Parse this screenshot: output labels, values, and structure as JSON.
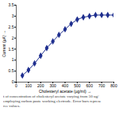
{
  "chart_data": {
    "type": "line",
    "x_label": "Cholesteryl acetate (µg/ml)",
    "y_label": "Current (µA)",
    "caption": [
      "t of concentration of cholesteryl acetate varying from 50 ug/",
      "employing carbon paste working electrode. Error bars represe",
      "ree values."
    ],
    "x": [
      50,
      100,
      150,
      200,
      250,
      300,
      350,
      400,
      450,
      500,
      550,
      600,
      650,
      700,
      750,
      800
    ],
    "series": [
      {
        "name": "Current",
        "color": "#1f2f8f",
        "marker": "diamond",
        "line_style": "solid",
        "values": [
          0.3,
          0.55,
          0.85,
          1.2,
          1.55,
          1.85,
          2.15,
          2.4,
          2.65,
          2.85,
          2.95,
          3.0,
          3.05,
          3.05,
          3.05,
          3.05
        ],
        "errors": [
          0.05,
          0.06,
          0.07,
          0.08,
          0.08,
          0.08,
          0.08,
          0.08,
          0.08,
          0.07,
          0.07,
          0.07,
          0.06,
          0.06,
          0.06,
          0.06
        ]
      }
    ],
    "xlim": [
      0,
      800
    ],
    "xticks": [
      0,
      100,
      200,
      300,
      400,
      500,
      600,
      700,
      800
    ],
    "ylim": [
      0,
      3.5
    ],
    "yticks": [
      0,
      0.5,
      1,
      1.5,
      2,
      2.5,
      3,
      3.5
    ],
    "grid": false
  }
}
